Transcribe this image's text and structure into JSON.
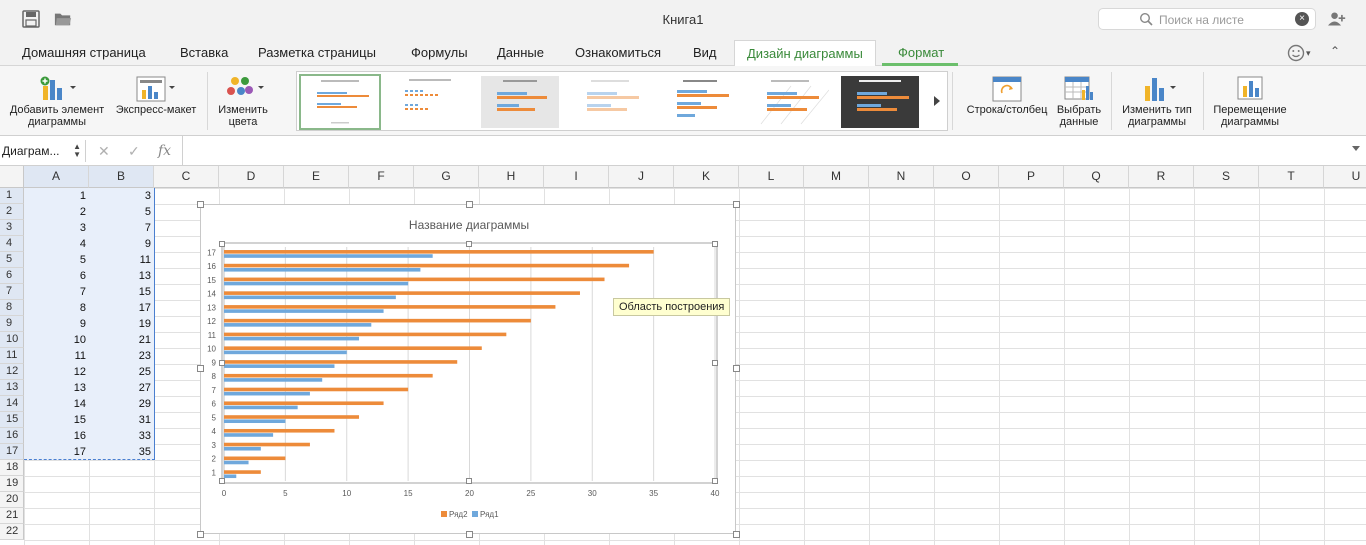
{
  "window": {
    "title": "Книга1"
  },
  "search": {
    "placeholder": "Поиск на листе"
  },
  "tabs": [
    {
      "label": "Домашняя страница"
    },
    {
      "label": "Вставка"
    },
    {
      "label": "Разметка страницы"
    },
    {
      "label": "Формулы"
    },
    {
      "label": "Данные"
    },
    {
      "label": "Ознакомиться"
    },
    {
      "label": "Вид"
    },
    {
      "label": "Дизайн диаграммы"
    },
    {
      "label": "Формат"
    }
  ],
  "ribbon": {
    "add_element": {
      "line1": "Добавить элемент",
      "line2": "диаграммы"
    },
    "express_layout": {
      "label": "Экспресс-макет"
    },
    "change_colors": {
      "line1": "Изменить",
      "line2": "цвета"
    },
    "row_column": {
      "label": "Строка/столбец"
    },
    "select_data": {
      "line1": "Выбрать",
      "line2": "данные"
    },
    "change_type": {
      "line1": "Изменить тип",
      "line2": "диаграммы"
    },
    "move_chart": {
      "line1": "Перемещение",
      "line2": "диаграммы"
    }
  },
  "formula_bar": {
    "name_box": "Диаграм...",
    "fx": "fx",
    "value": ""
  },
  "columns": [
    "A",
    "B",
    "C",
    "D",
    "E",
    "F",
    "G",
    "H",
    "I",
    "J",
    "K",
    "L",
    "M",
    "N",
    "O",
    "P",
    "Q",
    "R",
    "S",
    "T",
    "U"
  ],
  "rows": [
    "1",
    "2",
    "3",
    "4",
    "5",
    "6",
    "7",
    "8",
    "9",
    "10",
    "11",
    "12",
    "13",
    "14",
    "15",
    "16",
    "17",
    "18",
    "19",
    "20",
    "21",
    "22"
  ],
  "cells": {
    "A": [
      1,
      2,
      3,
      4,
      5,
      6,
      7,
      8,
      9,
      10,
      11,
      12,
      13,
      14,
      15,
      16,
      17
    ],
    "B": [
      3,
      5,
      7,
      9,
      11,
      13,
      15,
      17,
      19,
      21,
      23,
      25,
      27,
      29,
      31,
      33,
      35
    ]
  },
  "tooltip": "Область построения",
  "colors": {
    "series1": "#6fa8dc",
    "series2": "#ed8b3a",
    "accent_green": "#3a8a3a"
  },
  "chart_data": {
    "type": "bar",
    "orientation": "horizontal",
    "title": "Название диаграммы",
    "categories": [
      "1",
      "2",
      "3",
      "4",
      "5",
      "6",
      "7",
      "8",
      "9",
      "10",
      "11",
      "12",
      "13",
      "14",
      "15",
      "16",
      "17"
    ],
    "series": [
      {
        "name": "Ряд1",
        "color": "#6fa8dc",
        "values": [
          1,
          2,
          3,
          4,
          5,
          6,
          7,
          8,
          9,
          10,
          11,
          12,
          13,
          14,
          15,
          16,
          17
        ]
      },
      {
        "name": "Ряд2",
        "color": "#ed8b3a",
        "values": [
          3,
          5,
          7,
          9,
          11,
          13,
          15,
          17,
          19,
          21,
          23,
          25,
          27,
          29,
          31,
          33,
          35
        ]
      }
    ],
    "xticks": [
      "0",
      "5",
      "10",
      "15",
      "20",
      "25",
      "30",
      "35",
      "40"
    ],
    "xlim": [
      0,
      40
    ],
    "grid": true,
    "legend": [
      "Ряд2",
      "Ряд1"
    ],
    "legend_position": "bottom"
  }
}
